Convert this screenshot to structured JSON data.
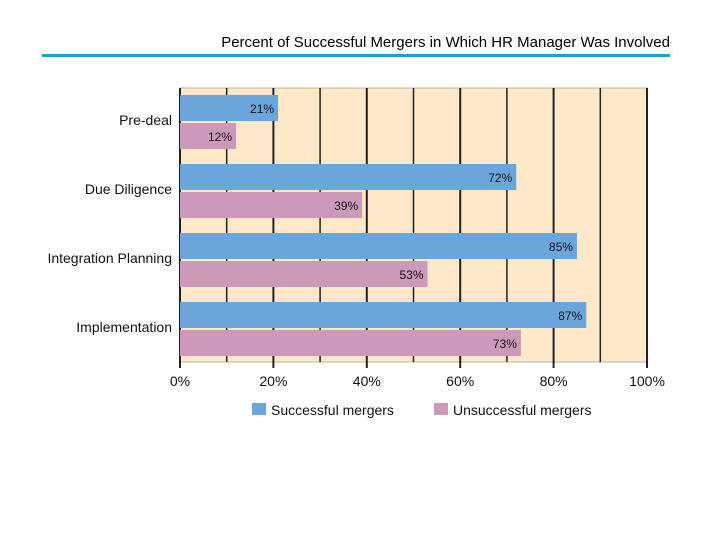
{
  "title": "Percent of Successful Mergers in Which HR Manager Was Involved",
  "colors": {
    "rule": "#1aa0d8",
    "plot_bg": "#fde8c8",
    "grid": "#222222"
  },
  "chart_data": {
    "type": "bar",
    "orientation": "horizontal",
    "categories": [
      "Pre-deal",
      "Due Diligence",
      "Integration Planning",
      "Implementation"
    ],
    "series": [
      {
        "name": "Successful mergers",
        "color": "#6aa6dc",
        "values": [
          21,
          72,
          85,
          87
        ]
      },
      {
        "name": "Unsuccessful mergers",
        "color": "#cc99bb",
        "values": [
          12,
          39,
          53,
          73
        ]
      }
    ],
    "value_labels": [
      [
        "21%",
        "72%",
        "85%",
        "87%"
      ],
      [
        "12%",
        "39%",
        "53%",
        "73%"
      ]
    ],
    "xlim": [
      0,
      100
    ],
    "xticks": [
      0,
      20,
      40,
      60,
      80,
      100
    ],
    "xtick_labels": [
      "0%",
      "20%",
      "40%",
      "60%",
      "80%",
      "100%"
    ],
    "grid": true,
    "legend_position": "bottom"
  }
}
